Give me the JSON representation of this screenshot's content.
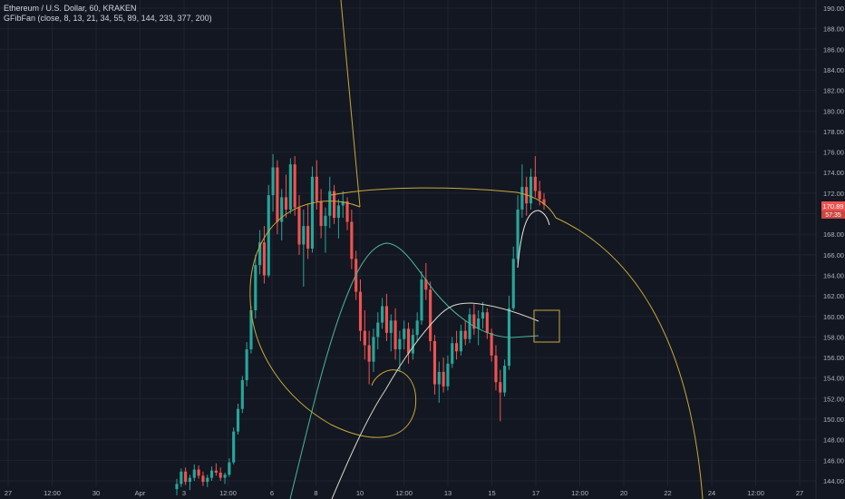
{
  "header": {
    "symbol": "Ethereum / U.S. Dollar, 60, KRAKEN",
    "indicator": "GFibFan (close, 8, 13, 21, 34, 55, 89, 144, 233, 377, 200)"
  },
  "colors": {
    "background": "#131722",
    "grid": "#1e2330",
    "axis_text": "#b2b5be",
    "candle_up": "#26a69a",
    "candle_down": "#ef5350",
    "fib_gold": "#c9a93a",
    "fib_teal": "#4bb79c",
    "fib_white": "#d8d8c8",
    "price_label_bg": "#ef5350"
  },
  "chart_data": {
    "type": "candlestick",
    "ylim": [
      143,
      191
    ],
    "yticks": [
      144,
      146,
      148,
      150,
      152,
      154,
      156,
      158,
      160,
      162,
      164,
      166,
      168,
      170,
      172,
      174,
      176,
      178,
      180,
      182,
      184,
      186,
      188,
      190
    ],
    "xticks": [
      "27",
      "12:00",
      "30",
      "Apr",
      "3",
      "12:00",
      "6",
      "8",
      "10",
      "12:00",
      "13",
      "15",
      "17",
      "12:00",
      "20",
      "22",
      "24",
      "12:00",
      "27"
    ],
    "price_labels": [
      "170.89",
      "57:35"
    ],
    "candles": [
      {
        "o": 143.2,
        "h": 144.2,
        "l": 142.6,
        "c": 143.7
      },
      {
        "o": 143.7,
        "h": 145.2,
        "l": 143.4,
        "c": 144.9
      },
      {
        "o": 144.9,
        "h": 145.3,
        "l": 143.6,
        "c": 143.9
      },
      {
        "o": 143.9,
        "h": 144.6,
        "l": 143.1,
        "c": 144.3
      },
      {
        "o": 144.3,
        "h": 145.6,
        "l": 144.0,
        "c": 145.1
      },
      {
        "o": 145.1,
        "h": 145.5,
        "l": 144.2,
        "c": 144.5
      },
      {
        "o": 144.5,
        "h": 144.9,
        "l": 143.5,
        "c": 143.9
      },
      {
        "o": 143.9,
        "h": 144.6,
        "l": 143.4,
        "c": 144.3
      },
      {
        "o": 144.3,
        "h": 145.4,
        "l": 144.0,
        "c": 145.0
      },
      {
        "o": 145.0,
        "h": 145.7,
        "l": 144.5,
        "c": 144.8
      },
      {
        "o": 144.8,
        "h": 145.3,
        "l": 144.0,
        "c": 144.3
      },
      {
        "o": 144.3,
        "h": 144.8,
        "l": 143.7,
        "c": 144.6
      },
      {
        "o": 144.6,
        "h": 146.2,
        "l": 144.4,
        "c": 145.8
      },
      {
        "o": 145.8,
        "h": 149.2,
        "l": 145.6,
        "c": 148.8
      },
      {
        "o": 148.8,
        "h": 151.5,
        "l": 148.5,
        "c": 151.0
      },
      {
        "o": 151.0,
        "h": 154.2,
        "l": 150.6,
        "c": 153.8
      },
      {
        "o": 153.8,
        "h": 157.5,
        "l": 153.2,
        "c": 156.8
      },
      {
        "o": 156.8,
        "h": 161.0,
        "l": 156.4,
        "c": 160.6
      },
      {
        "o": 160.6,
        "h": 166.0,
        "l": 159.8,
        "c": 165.0
      },
      {
        "o": 165.0,
        "h": 168.4,
        "l": 164.1,
        "c": 167.2
      },
      {
        "o": 167.2,
        "h": 168.8,
        "l": 163.2,
        "c": 164.0
      },
      {
        "o": 164.0,
        "h": 172.8,
        "l": 163.8,
        "c": 171.8
      },
      {
        "o": 171.8,
        "h": 175.8,
        "l": 170.2,
        "c": 174.5
      },
      {
        "o": 174.5,
        "h": 175.2,
        "l": 168.0,
        "c": 169.2
      },
      {
        "o": 169.2,
        "h": 172.4,
        "l": 167.4,
        "c": 171.6
      },
      {
        "o": 171.6,
        "h": 173.8,
        "l": 169.6,
        "c": 170.4
      },
      {
        "o": 170.4,
        "h": 175.4,
        "l": 170.0,
        "c": 174.8
      },
      {
        "o": 174.8,
        "h": 175.6,
        "l": 169.8,
        "c": 170.6
      },
      {
        "o": 170.6,
        "h": 171.8,
        "l": 166.0,
        "c": 167.0
      },
      {
        "o": 167.0,
        "h": 170.4,
        "l": 162.9,
        "c": 168.8
      },
      {
        "o": 168.8,
        "h": 171.0,
        "l": 165.6,
        "c": 166.6
      },
      {
        "o": 166.6,
        "h": 174.6,
        "l": 166.2,
        "c": 173.6
      },
      {
        "o": 173.6,
        "h": 175.2,
        "l": 170.4,
        "c": 171.2
      },
      {
        "o": 171.2,
        "h": 172.4,
        "l": 167.6,
        "c": 168.8
      },
      {
        "o": 168.8,
        "h": 170.6,
        "l": 166.2,
        "c": 169.8
      },
      {
        "o": 169.8,
        "h": 173.6,
        "l": 168.6,
        "c": 172.2
      },
      {
        "o": 172.2,
        "h": 172.8,
        "l": 169.0,
        "c": 169.6
      },
      {
        "o": 169.6,
        "h": 171.4,
        "l": 167.6,
        "c": 170.8
      },
      {
        "o": 170.8,
        "h": 172.2,
        "l": 169.6,
        "c": 171.2
      },
      {
        "o": 171.2,
        "h": 171.6,
        "l": 168.4,
        "c": 169.2
      },
      {
        "o": 169.2,
        "h": 170.4,
        "l": 164.6,
        "c": 165.6
      },
      {
        "o": 165.6,
        "h": 166.4,
        "l": 161.6,
        "c": 162.4
      },
      {
        "o": 162.4,
        "h": 163.6,
        "l": 157.6,
        "c": 158.6
      },
      {
        "o": 158.6,
        "h": 160.6,
        "l": 155.8,
        "c": 157.2
      },
      {
        "o": 157.2,
        "h": 158.6,
        "l": 153.4,
        "c": 155.6
      },
      {
        "o": 155.6,
        "h": 158.8,
        "l": 154.6,
        "c": 158.0
      },
      {
        "o": 158.0,
        "h": 160.4,
        "l": 156.8,
        "c": 159.4
      },
      {
        "o": 159.4,
        "h": 161.8,
        "l": 158.8,
        "c": 161.0
      },
      {
        "o": 161.0,
        "h": 162.2,
        "l": 157.6,
        "c": 158.4
      },
      {
        "o": 158.4,
        "h": 160.2,
        "l": 156.6,
        "c": 159.6
      },
      {
        "o": 159.6,
        "h": 160.8,
        "l": 155.8,
        "c": 156.8
      },
      {
        "o": 156.8,
        "h": 158.6,
        "l": 154.6,
        "c": 157.8
      },
      {
        "o": 157.8,
        "h": 159.6,
        "l": 156.8,
        "c": 158.8
      },
      {
        "o": 158.8,
        "h": 159.4,
        "l": 155.4,
        "c": 156.4
      },
      {
        "o": 156.4,
        "h": 158.8,
        "l": 155.8,
        "c": 158.2
      },
      {
        "o": 158.2,
        "h": 160.4,
        "l": 157.6,
        "c": 159.6
      },
      {
        "o": 159.6,
        "h": 164.4,
        "l": 159.2,
        "c": 163.6
      },
      {
        "o": 163.6,
        "h": 165.2,
        "l": 161.6,
        "c": 162.6
      },
      {
        "o": 162.6,
        "h": 163.4,
        "l": 156.6,
        "c": 157.6
      },
      {
        "o": 157.6,
        "h": 158.2,
        "l": 152.4,
        "c": 153.4
      },
      {
        "o": 153.4,
        "h": 155.6,
        "l": 151.6,
        "c": 154.6
      },
      {
        "o": 154.6,
        "h": 156.0,
        "l": 152.6,
        "c": 153.2
      },
      {
        "o": 153.2,
        "h": 156.2,
        "l": 152.8,
        "c": 155.4
      },
      {
        "o": 155.4,
        "h": 158.0,
        "l": 155.0,
        "c": 157.4
      },
      {
        "o": 157.4,
        "h": 158.6,
        "l": 155.8,
        "c": 156.6
      },
      {
        "o": 156.6,
        "h": 159.2,
        "l": 156.2,
        "c": 158.6
      },
      {
        "o": 158.6,
        "h": 159.6,
        "l": 157.2,
        "c": 157.8
      },
      {
        "o": 157.8,
        "h": 160.8,
        "l": 157.4,
        "c": 160.2
      },
      {
        "o": 160.2,
        "h": 161.2,
        "l": 158.2,
        "c": 158.8
      },
      {
        "o": 158.8,
        "h": 160.6,
        "l": 157.2,
        "c": 159.8
      },
      {
        "o": 159.8,
        "h": 161.4,
        "l": 158.8,
        "c": 160.4
      },
      {
        "o": 160.4,
        "h": 160.8,
        "l": 157.8,
        "c": 158.4
      },
      {
        "o": 158.4,
        "h": 158.8,
        "l": 155.6,
        "c": 156.2
      },
      {
        "o": 156.2,
        "h": 157.2,
        "l": 152.8,
        "c": 153.6
      },
      {
        "o": 153.6,
        "h": 154.8,
        "l": 149.8,
        "c": 152.6
      },
      {
        "o": 152.6,
        "h": 155.8,
        "l": 152.2,
        "c": 155.2
      },
      {
        "o": 155.2,
        "h": 162.0,
        "l": 154.8,
        "c": 160.8
      },
      {
        "o": 160.8,
        "h": 166.8,
        "l": 160.6,
        "c": 165.6
      },
      {
        "o": 165.6,
        "h": 171.8,
        "l": 165.2,
        "c": 170.4
      },
      {
        "o": 170.4,
        "h": 174.8,
        "l": 169.6,
        "c": 172.6
      },
      {
        "o": 172.6,
        "h": 173.6,
        "l": 169.8,
        "c": 171.0
      },
      {
        "o": 171.0,
        "h": 174.4,
        "l": 170.4,
        "c": 173.6
      },
      {
        "o": 173.6,
        "h": 175.6,
        "l": 171.6,
        "c": 172.2
      },
      {
        "o": 172.2,
        "h": 173.2,
        "l": 170.8,
        "c": 171.4
      },
      {
        "o": 171.4,
        "h": 172.0,
        "l": 170.4,
        "c": 170.9
      }
    ]
  }
}
